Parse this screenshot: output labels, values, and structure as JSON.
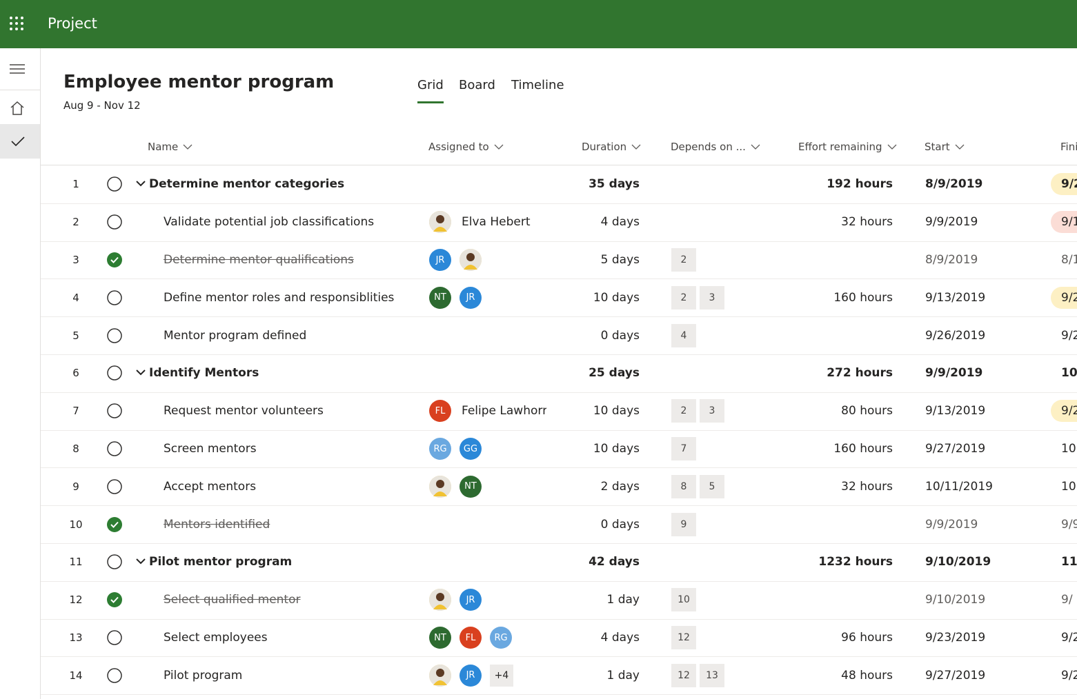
{
  "app": {
    "name": "Project"
  },
  "project": {
    "title": "Employee mentor program",
    "dates": "Aug 9 - Nov 12"
  },
  "tabs": [
    "Grid",
    "Board",
    "Timeline"
  ],
  "active_tab": 0,
  "columns": [
    "Name",
    "Assigned to",
    "Duration",
    "Depends on ...",
    "Effort remaining",
    "Start",
    "Fini"
  ],
  "rows": [
    {
      "id": "1",
      "summary": true,
      "done": false,
      "name": "Determine mentor categories",
      "assignees": [],
      "duration": "35 days",
      "depends": [],
      "effort": "192 hours",
      "start": "8/9/2019",
      "finish": "9/2",
      "finish_highlight": "#fdf0c4"
    },
    {
      "id": "2",
      "summary": false,
      "done": false,
      "name": "Validate potential job classifications",
      "assignees": [
        {
          "initials": null,
          "color": "#f3d36b"
        }
      ],
      "assignee_name": "Elva Hebert",
      "duration": "4 days",
      "depends": [],
      "effort": "32 hours",
      "start": "9/9/2019",
      "finish": "9/1",
      "finish_highlight": "#fbddd6"
    },
    {
      "id": "3",
      "summary": false,
      "done": true,
      "name": "Determine mentor qualifications",
      "assignees": [
        {
          "initials": "JR",
          "color": "#2b88d8"
        },
        {
          "initials": null,
          "color": "#f3d36b"
        }
      ],
      "duration": "5 days",
      "depends": [
        "2"
      ],
      "start": "8/9/2019",
      "finish": "8/1"
    },
    {
      "id": "4",
      "summary": false,
      "done": false,
      "name": "Define mentor roles and responsiblities",
      "assignees": [
        {
          "initials": "NT",
          "color": "#2d6a30"
        },
        {
          "initials": "JR",
          "color": "#2b88d8"
        }
      ],
      "duration": "10 days",
      "depends": [
        "2",
        "3"
      ],
      "effort": "160 hours",
      "start": "9/13/2019",
      "finish": "9/2",
      "finish_highlight": "#fdf0c4"
    },
    {
      "id": "5",
      "summary": false,
      "done": false,
      "name": "Mentor program defined",
      "assignees": [],
      "duration": "0 days",
      "depends": [
        "4"
      ],
      "start": "9/26/2019",
      "finish": "9/2"
    },
    {
      "id": "6",
      "summary": true,
      "done": false,
      "name": "Identify Mentors",
      "assignees": [],
      "duration": "25 days",
      "depends": [],
      "effort": "272 hours",
      "start": "9/9/2019",
      "finish": "10"
    },
    {
      "id": "7",
      "summary": false,
      "done": false,
      "name": "Request mentor volunteers",
      "assignees": [
        {
          "initials": "FL",
          "color": "#d9401f"
        }
      ],
      "assignee_name": "Felipe Lawhorr",
      "duration": "10 days",
      "depends": [
        "2",
        "3"
      ],
      "effort": "80 hours",
      "start": "9/13/2019",
      "finish": "9/2",
      "finish_highlight": "#fdf0c4"
    },
    {
      "id": "8",
      "summary": false,
      "done": false,
      "name": "Screen mentors",
      "assignees": [
        {
          "initials": "RG",
          "color": "#6aa8e0"
        },
        {
          "initials": "GG",
          "color": "#2b88d8"
        }
      ],
      "duration": "10 days",
      "depends": [
        "7"
      ],
      "effort": "160 hours",
      "start": "9/27/2019",
      "finish": "10,"
    },
    {
      "id": "9",
      "summary": false,
      "done": false,
      "name": "Accept mentors",
      "assignees": [
        {
          "initials": null,
          "color": "#f3d36b"
        },
        {
          "initials": "NT",
          "color": "#2d6a30"
        }
      ],
      "duration": "2 days",
      "depends": [
        "8",
        "5"
      ],
      "effort": "32 hours",
      "start": "10/11/2019",
      "finish": "10,"
    },
    {
      "id": "10",
      "summary": false,
      "done": true,
      "name": "Mentors identified",
      "assignees": [],
      "duration": "0 days",
      "depends": [
        "9"
      ],
      "start": "9/9/2019",
      "finish": "9/9"
    },
    {
      "id": "11",
      "summary": true,
      "done": false,
      "name": "Pilot mentor program",
      "assignees": [],
      "duration": "42 days",
      "depends": [],
      "effort": "1232 hours",
      "start": "9/10/2019",
      "finish": "11"
    },
    {
      "id": "12",
      "summary": false,
      "done": true,
      "name": "Select qualified mentor",
      "assignees": [
        {
          "initials": null,
          "color": "#f3d36b"
        },
        {
          "initials": "JR",
          "color": "#2b88d8"
        }
      ],
      "duration": "1 day",
      "depends": [
        "10"
      ],
      "start": "9/10/2019",
      "finish": "9/"
    },
    {
      "id": "13",
      "summary": false,
      "done": false,
      "name": "Select employees",
      "assignees": [
        {
          "initials": "NT",
          "color": "#2d6a30"
        },
        {
          "initials": "FL",
          "color": "#d9401f"
        },
        {
          "initials": "RG",
          "color": "#6aa8e0"
        }
      ],
      "duration": "4 days",
      "depends": [
        "12"
      ],
      "effort": "96 hours",
      "start": "9/23/2019",
      "finish": "9/2"
    },
    {
      "id": "14",
      "summary": false,
      "done": false,
      "name": "Pilot program",
      "assignees": [
        {
          "initials": null,
          "color": "#f3d36b"
        },
        {
          "initials": "JR",
          "color": "#2b88d8"
        }
      ],
      "more": "+4",
      "duration": "1 day",
      "depends": [
        "12",
        "13"
      ],
      "effort": "48 hours",
      "start": "9/27/2019",
      "finish": "9/2"
    }
  ]
}
